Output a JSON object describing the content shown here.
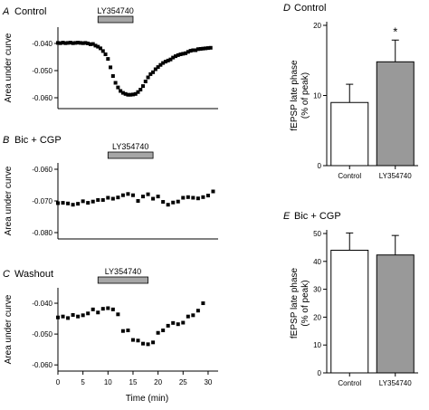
{
  "chart_data": [
    {
      "type": "scatter",
      "panel_letter": "A",
      "title": "Control",
      "ylabel": "Area under curve",
      "ylim": [
        -0.064,
        -0.034
      ],
      "yticks": [
        -0.04,
        -0.05,
        -0.06
      ],
      "ytick_labels": [
        "-0.040",
        "-0.050",
        "-0.060"
      ],
      "xlim": [
        0,
        32
      ],
      "drug": {
        "label": "LY354740",
        "start": 8,
        "end": 15
      },
      "x": [
        0,
        0.5,
        1,
        1.5,
        2,
        2.5,
        3,
        3.5,
        4,
        4.5,
        5,
        5.5,
        6,
        6.5,
        7,
        7.5,
        8,
        8.5,
        9,
        9.5,
        10,
        10.5,
        11,
        11.5,
        12,
        12.5,
        13,
        13.5,
        14,
        14.5,
        15,
        15.5,
        16,
        16.5,
        17,
        17.5,
        18,
        18.5,
        19,
        19.5,
        20,
        20.5,
        21,
        21.5,
        22,
        22.5,
        23,
        23.5,
        24,
        24.5,
        25,
        25.5,
        26,
        26.5,
        27,
        27.5,
        28,
        28.5,
        29,
        29.5,
        30,
        30.5
      ],
      "y": [
        -0.0398,
        -0.0399,
        -0.0397,
        -0.0399,
        -0.0398,
        -0.0397,
        -0.0399,
        -0.0398,
        -0.0397,
        -0.0398,
        -0.0399,
        -0.0398,
        -0.04,
        -0.0403,
        -0.0402,
        -0.0408,
        -0.0412,
        -0.0418,
        -0.0428,
        -0.044,
        -0.0457,
        -0.0488,
        -0.052,
        -0.0545,
        -0.0562,
        -0.0575,
        -0.0582,
        -0.0586,
        -0.0589,
        -0.0589,
        -0.0588,
        -0.0586,
        -0.0579,
        -0.057,
        -0.0557,
        -0.054,
        -0.0525,
        -0.0513,
        -0.0506,
        -0.0495,
        -0.0487,
        -0.0479,
        -0.0472,
        -0.0467,
        -0.0463,
        -0.0459,
        -0.0452,
        -0.0447,
        -0.0443,
        -0.044,
        -0.0438,
        -0.0436,
        -0.0431,
        -0.0427,
        -0.0425,
        -0.0425,
        -0.0421,
        -0.042,
        -0.0419,
        -0.0418,
        -0.0417,
        -0.0416
      ]
    },
    {
      "type": "scatter",
      "panel_letter": "B",
      "title": "Bic + CGP",
      "ylabel": "Area under curve",
      "ylim": [
        -0.082,
        -0.058
      ],
      "yticks": [
        -0.06,
        -0.07,
        -0.08
      ],
      "ytick_labels": [
        "-0.060",
        "-0.070",
        "-0.080"
      ],
      "xlim": [
        0,
        32
      ],
      "drug": {
        "label": "LY354740",
        "start": 10,
        "end": 19
      },
      "x": [
        0,
        1,
        2,
        3,
        4,
        5,
        6,
        7,
        8,
        9,
        10,
        11,
        12,
        13,
        14,
        15,
        16,
        17,
        18,
        19,
        20,
        21,
        22,
        23,
        24,
        25,
        26,
        27,
        28,
        29,
        30,
        31
      ],
      "y": [
        -0.0707,
        -0.0706,
        -0.0708,
        -0.0712,
        -0.0709,
        -0.0701,
        -0.0706,
        -0.0702,
        -0.0697,
        -0.0697,
        -0.069,
        -0.0693,
        -0.0689,
        -0.0682,
        -0.0678,
        -0.0682,
        -0.07,
        -0.0686,
        -0.0679,
        -0.0693,
        -0.0686,
        -0.0703,
        -0.0712,
        -0.0705,
        -0.0702,
        -0.069,
        -0.0688,
        -0.069,
        -0.0692,
        -0.0688,
        -0.0683,
        -0.067
      ]
    },
    {
      "type": "scatter",
      "panel_letter": "C",
      "title": "Washout",
      "ylabel": "Area under curve",
      "xlabel": "Time (min)",
      "ylim": [
        -0.062,
        -0.035
      ],
      "yticks": [
        -0.04,
        -0.05,
        -0.06
      ],
      "ytick_labels": [
        "-0.040",
        "-0.050",
        "-0.060"
      ],
      "xlim": [
        0,
        32
      ],
      "xticks": [
        0,
        5,
        10,
        15,
        20,
        25,
        30
      ],
      "xtick_labels": [
        "0",
        "5",
        "10",
        "15",
        "20",
        "25",
        "30"
      ],
      "drug": {
        "label": "LY354740",
        "start": 8,
        "end": 18
      },
      "x": [
        0,
        1,
        2,
        3,
        4,
        5,
        6,
        7,
        8,
        9,
        10,
        11,
        12,
        13,
        14,
        15,
        16,
        17,
        18,
        19,
        20,
        21,
        22,
        23,
        24,
        25,
        26,
        27,
        28,
        29
      ],
      "y": [
        -0.0446,
        -0.0443,
        -0.0448,
        -0.0438,
        -0.0443,
        -0.0439,
        -0.0433,
        -0.042,
        -0.043,
        -0.0418,
        -0.0416,
        -0.042,
        -0.0436,
        -0.049,
        -0.0488,
        -0.0519,
        -0.0521,
        -0.0531,
        -0.0533,
        -0.0527,
        -0.0496,
        -0.0488,
        -0.0473,
        -0.0464,
        -0.0468,
        -0.0463,
        -0.0443,
        -0.0439,
        -0.0424,
        -0.04
      ]
    },
    {
      "type": "bar",
      "panel_letter": "D",
      "title": "Control",
      "ylabel": [
        "fEPSP late phase",
        "(% of peak)"
      ],
      "ylim": [
        0,
        20
      ],
      "yticks": [
        0,
        10,
        20
      ],
      "ytick_labels": [
        "0",
        "10",
        "20"
      ],
      "categories": [
        "Control",
        "LY354740"
      ],
      "values": [
        9.0,
        14.8
      ],
      "errors": [
        2.6,
        3.1
      ],
      "bar_colors": [
        "#ffffff",
        "#999999"
      ],
      "annotation": "*"
    },
    {
      "type": "bar",
      "panel_letter": "E",
      "title": "Bic + CGP",
      "ylabel": [
        "fEPSP late phase",
        "(% of peak)"
      ],
      "ylim": [
        0,
        50
      ],
      "yticks": [
        0,
        10,
        20,
        30,
        40,
        50
      ],
      "ytick_labels": [
        "0",
        "10",
        "20",
        "30",
        "40",
        "50"
      ],
      "categories": [
        "Control",
        "LY354740"
      ],
      "values": [
        44.0,
        42.3
      ],
      "errors": [
        6.2,
        7.0
      ],
      "bar_colors": [
        "#ffffff",
        "#999999"
      ]
    }
  ]
}
